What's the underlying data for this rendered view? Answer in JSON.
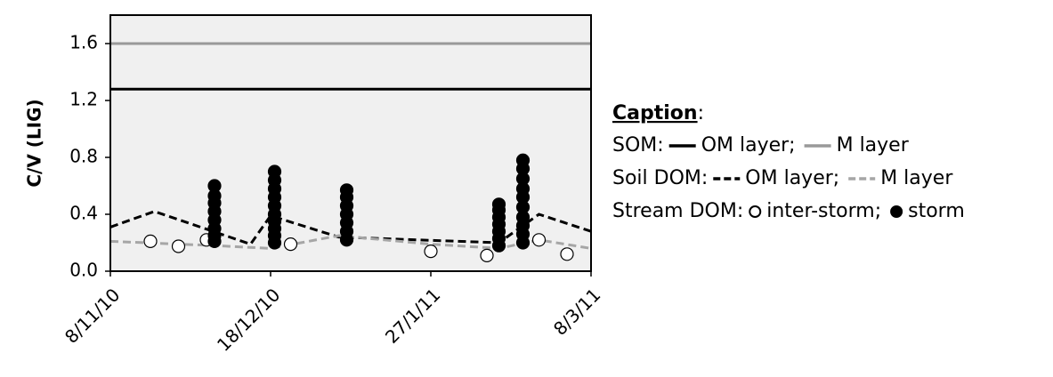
{
  "chart_data": {
    "type": "line",
    "ylabel": "C/V (LIG)",
    "ylim": [
      0,
      1.8
    ],
    "yticks": [
      {
        "value": 0,
        "label": "0.0"
      },
      {
        "value": 0.4,
        "label": "0.4"
      },
      {
        "value": 0.8,
        "label": "0.8"
      },
      {
        "value": 1.2,
        "label": "1.2"
      },
      {
        "value": 1.6,
        "label": "1.6"
      }
    ],
    "xlim": [
      "8/11/10",
      "8/3/11"
    ],
    "xticks": [
      "8/11/10",
      "18/12/10",
      "27/1/11",
      "8/3/11"
    ],
    "legend_title": "Caption",
    "legend_title_suffix": ":",
    "legend_separator": ";",
    "groups": [
      {
        "name": "SOM:",
        "series": [
          {
            "name": "OM layer",
            "kind": "line",
            "style": "solid",
            "color": "#000000",
            "x": [
              "8/11/10",
              "8/3/11"
            ],
            "values": [
              1.28,
              1.28
            ]
          },
          {
            "name": "M layer",
            "kind": "line",
            "style": "solid",
            "color": "#999999",
            "x": [
              "8/11/10",
              "8/3/11"
            ],
            "values": [
              1.6,
              1.6
            ]
          }
        ]
      },
      {
        "name": "Soil DOM:",
        "series": [
          {
            "name": "OM layer",
            "kind": "line",
            "style": "dashed",
            "color": "#000000",
            "x": [
              "8/11/10",
              "19/11/10",
              "13/12/10",
              "18/12/10",
              "4/1/11",
              "13/2/11",
              "23/2/11",
              "8/3/11"
            ],
            "values": [
              0.31,
              0.42,
              0.19,
              0.39,
              0.24,
              0.2,
              0.4,
              0.28
            ]
          },
          {
            "name": "M layer",
            "kind": "line",
            "style": "dashed",
            "color": "#a6a6a6",
            "x": [
              "8/11/10",
              "4/12/10",
              "18/12/10",
              "4/1/11",
              "27/1/11",
              "13/2/11",
              "23/2/11",
              "8/3/11"
            ],
            "values": [
              0.21,
              0.18,
              0.16,
              0.25,
              0.19,
              0.16,
              0.22,
              0.16
            ]
          }
        ]
      },
      {
        "name": "Stream DOM:",
        "series": [
          {
            "name": "inter-storm",
            "kind": "scatter",
            "marker": "open",
            "color": "#000000",
            "x": [
              "18/11/10",
              "25/11/10",
              "2/12/10",
              "23/12/10",
              "27/1/11",
              "10/2/11",
              "23/2/11",
              "2/3/11"
            ],
            "values": [
              0.21,
              0.175,
              0.22,
              0.19,
              0.14,
              0.11,
              0.22,
              0.12
            ]
          },
          {
            "name": "storm",
            "kind": "scatter",
            "marker": "filled",
            "color": "#000000",
            "x": [
              "4/12/10",
              "4/12/10",
              "4/12/10",
              "4/12/10",
              "4/12/10",
              "4/12/10",
              "4/12/10",
              "4/12/10",
              "19/12/10",
              "19/12/10",
              "19/12/10",
              "19/12/10",
              "19/12/10",
              "19/12/10",
              "19/12/10",
              "19/12/10",
              "19/12/10",
              "19/12/10",
              "6/1/11",
              "6/1/11",
              "6/1/11",
              "6/1/11",
              "6/1/11",
              "6/1/11",
              "6/1/11",
              "13/2/11",
              "13/2/11",
              "13/2/11",
              "13/2/11",
              "13/2/11",
              "13/2/11",
              "13/2/11",
              "19/2/11",
              "19/2/11",
              "19/2/11",
              "19/2/11",
              "19/2/11",
              "19/2/11",
              "19/2/11",
              "19/2/11",
              "19/2/11",
              "19/2/11"
            ],
            "values": [
              0.21,
              0.25,
              0.3,
              0.36,
              0.42,
              0.48,
              0.53,
              0.6,
              0.2,
              0.25,
              0.3,
              0.35,
              0.4,
              0.46,
              0.52,
              0.58,
              0.64,
              0.7,
              0.22,
              0.28,
              0.34,
              0.4,
              0.46,
              0.52,
              0.57,
              0.18,
              0.23,
              0.28,
              0.33,
              0.38,
              0.43,
              0.47,
              0.2,
              0.26,
              0.32,
              0.38,
              0.45,
              0.52,
              0.58,
              0.65,
              0.72,
              0.78
            ]
          }
        ]
      }
    ]
  }
}
